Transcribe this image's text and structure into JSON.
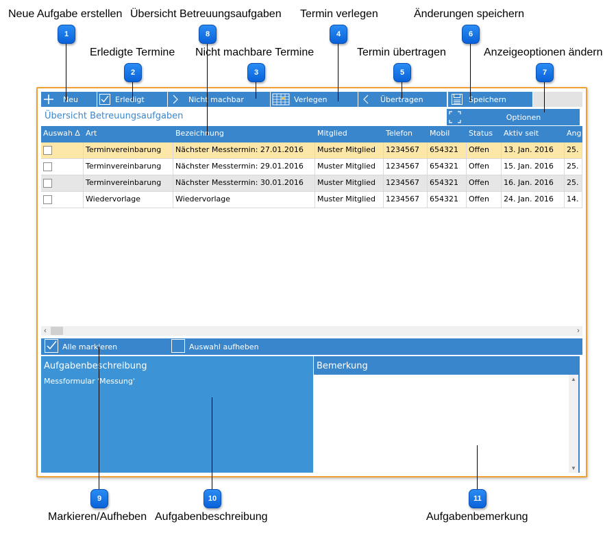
{
  "callouts": [
    {
      "num": "1",
      "text": "Neue Aufgabe erstellen"
    },
    {
      "num": "2",
      "text": "Erledigte Termine"
    },
    {
      "num": "3",
      "text": "Nicht machbare Termine"
    },
    {
      "num": "4",
      "text": "Termin verlegen"
    },
    {
      "num": "5",
      "text": "Termin übertragen"
    },
    {
      "num": "6",
      "text": "Änderungen speichern"
    },
    {
      "num": "7",
      "text": "Anzeigeoptionen ändern"
    },
    {
      "num": "8",
      "text": "Übersicht Betreuungsaufgaben"
    },
    {
      "num": "9",
      "text": "Markieren/Aufheben"
    },
    {
      "num": "10",
      "text": "Aufgabenbeschreibung"
    },
    {
      "num": "11",
      "text": "Aufgabenbemerkung"
    }
  ],
  "toolbar": {
    "new_label": "Neu",
    "done_label": "Erledigt",
    "notdoable_label": "Nicht machbar",
    "reschedule_label": "Verlegen",
    "transfer_label": "Übertragen",
    "save_label": "Speichern",
    "options_label": "Optionen"
  },
  "page_title": "Übersicht Betreuungsaufgaben",
  "table": {
    "columns": [
      "Auswah ∆",
      "Art",
      "Bezeichnung",
      "Mitglied",
      "Telefon",
      "Mobil",
      "Status",
      "Aktiv seit",
      "Ang"
    ],
    "rows": [
      {
        "art": "Terminvereinbarung",
        "bez": "Nächster Messtermin: 27.01.2016",
        "mitglied": "Muster Mitglied",
        "telefon": "1234567",
        "mobil": "654321",
        "status": "Offen",
        "aktiv": "13. Jan. 2016",
        "ang": "25."
      },
      {
        "art": "Terminvereinbarung",
        "bez": "Nächster Messtermin: 29.01.2016",
        "mitglied": "Muster Mitglied",
        "telefon": "1234567",
        "mobil": "654321",
        "status": "Offen",
        "aktiv": "15. Jan. 2016",
        "ang": "25."
      },
      {
        "art": "Terminvereinbarung",
        "bez": "Nächster Messtermin: 30.01.2016",
        "mitglied": "Muster Mitglied",
        "telefon": "1234567",
        "mobil": "654321",
        "status": "Offen",
        "aktiv": "16. Jan. 2016",
        "ang": "25."
      },
      {
        "art": "Wiedervorlage",
        "bez": "Wiedervorlage",
        "mitglied": "Muster Mitglied",
        "telefon": "1234567",
        "mobil": "654321",
        "status": "Offen",
        "aktiv": "24. Jan. 2016",
        "ang": "14."
      }
    ]
  },
  "selection": {
    "select_all": "Alle markieren",
    "clear": "Auswahl aufheben"
  },
  "description": {
    "title": "Aufgabenbeschreibung",
    "text": "Messformular 'Messung'"
  },
  "note": {
    "title": "Bemerkung",
    "text": ""
  },
  "colors": {
    "accent": "#3a86cc",
    "frame": "#f0a030",
    "highlight_row": "#fde7a8",
    "alt_row": "#e6e6e6"
  }
}
